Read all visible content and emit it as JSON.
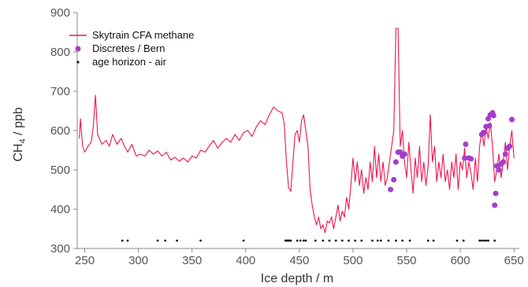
{
  "chart_data": {
    "type": "line",
    "xlabel": "Ice depth  / m",
    "ylabel_main": "CH",
    "ylabel_sub": "4",
    "ylabel_unit": " / ppb",
    "xlim": [
      243,
      655
    ],
    "ylim": [
      300,
      900
    ],
    "x_ticks": [
      {
        "value": 250,
        "label": "250"
      },
      {
        "value": 300,
        "label": "300"
      },
      {
        "value": 350,
        "label": "350"
      },
      {
        "value": 400,
        "label": "400"
      },
      {
        "value": 450,
        "label": "450"
      },
      {
        "value": 500,
        "label": "500"
      },
      {
        "value": 550,
        "label": "550"
      },
      {
        "value": 600,
        "label": "600"
      },
      {
        "value": 650,
        "label": "650"
      }
    ],
    "y_ticks": [
      {
        "value": 300,
        "label": "300"
      },
      {
        "value": 400,
        "label": "400"
      },
      {
        "value": 500,
        "label": "500"
      },
      {
        "value": 600,
        "label": "600"
      },
      {
        "value": 700,
        "label": "700"
      },
      {
        "value": 800,
        "label": "800"
      },
      {
        "value": 900,
        "label": "900"
      }
    ],
    "grid": false,
    "legend_position": "top-left",
    "colors": {
      "cfa": "#f0134f",
      "discrete": "#a43ec8",
      "age": "#111111",
      "axis": "#888888"
    },
    "series": [
      {
        "name": "Skytrain CFA methane",
        "kind": "line",
        "points": [
          [
            245,
            580
          ],
          [
            246,
            630
          ],
          [
            248,
            560
          ],
          [
            250,
            545
          ],
          [
            253,
            560
          ],
          [
            256,
            570
          ],
          [
            258,
            610
          ],
          [
            260,
            690
          ],
          [
            262,
            590
          ],
          [
            266,
            565
          ],
          [
            270,
            575
          ],
          [
            273,
            560
          ],
          [
            276,
            590
          ],
          [
            280,
            565
          ],
          [
            284,
            580
          ],
          [
            287,
            560
          ],
          [
            290,
            545
          ],
          [
            294,
            565
          ],
          [
            298,
            535
          ],
          [
            302,
            540
          ],
          [
            306,
            535
          ],
          [
            310,
            550
          ],
          [
            314,
            540
          ],
          [
            318,
            548
          ],
          [
            322,
            535
          ],
          [
            326,
            545
          ],
          [
            330,
            525
          ],
          [
            334,
            532
          ],
          [
            338,
            522
          ],
          [
            342,
            530
          ],
          [
            346,
            520
          ],
          [
            350,
            535
          ],
          [
            354,
            530
          ],
          [
            358,
            550
          ],
          [
            362,
            545
          ],
          [
            366,
            560
          ],
          [
            370,
            575
          ],
          [
            374,
            555
          ],
          [
            378,
            570
          ],
          [
            382,
            580
          ],
          [
            386,
            570
          ],
          [
            390,
            590
          ],
          [
            394,
            575
          ],
          [
            398,
            595
          ],
          [
            402,
            600
          ],
          [
            406,
            585
          ],
          [
            410,
            610
          ],
          [
            414,
            625
          ],
          [
            418,
            615
          ],
          [
            422,
            640
          ],
          [
            426,
            660
          ],
          [
            430,
            650
          ],
          [
            434,
            645
          ],
          [
            436,
            615
          ],
          [
            438,
            520
          ],
          [
            440,
            455
          ],
          [
            442,
            445
          ],
          [
            444,
            520
          ],
          [
            446,
            590
          ],
          [
            448,
            600
          ],
          [
            450,
            570
          ],
          [
            452,
            625
          ],
          [
            454,
            640
          ],
          [
            456,
            600
          ],
          [
            458,
            560
          ],
          [
            460,
            450
          ],
          [
            462,
            410
          ],
          [
            464,
            380
          ],
          [
            466,
            360
          ],
          [
            468,
            380
          ],
          [
            470,
            350
          ],
          [
            472,
            360
          ],
          [
            474,
            340
          ],
          [
            476,
            370
          ],
          [
            478,
            365
          ],
          [
            480,
            380
          ],
          [
            482,
            350
          ],
          [
            484,
            380
          ],
          [
            486,
            410
          ],
          [
            488,
            370
          ],
          [
            490,
            395
          ],
          [
            492,
            380
          ],
          [
            494,
            430
          ],
          [
            496,
            400
          ],
          [
            498,
            460
          ],
          [
            500,
            530
          ],
          [
            502,
            470
          ],
          [
            504,
            520
          ],
          [
            506,
            460
          ],
          [
            508,
            500
          ],
          [
            510,
            440
          ],
          [
            512,
            480
          ],
          [
            514,
            450
          ],
          [
            516,
            520
          ],
          [
            518,
            470
          ],
          [
            520,
            560
          ],
          [
            522,
            480
          ],
          [
            524,
            540
          ],
          [
            526,
            470
          ],
          [
            528,
            520
          ],
          [
            530,
            460
          ],
          [
            532,
            480
          ],
          [
            534,
            520
          ],
          [
            536,
            560
          ],
          [
            538,
            600
          ],
          [
            540,
            860
          ],
          [
            542,
            860
          ],
          [
            544,
            560
          ],
          [
            546,
            600
          ],
          [
            548,
            520
          ],
          [
            550,
            480
          ],
          [
            552,
            570
          ],
          [
            554,
            500
          ],
          [
            556,
            440
          ],
          [
            558,
            530
          ],
          [
            560,
            480
          ],
          [
            562,
            560
          ],
          [
            564,
            470
          ],
          [
            566,
            520
          ],
          [
            568,
            460
          ],
          [
            570,
            510
          ],
          [
            572,
            640
          ],
          [
            574,
            520
          ],
          [
            576,
            560
          ],
          [
            578,
            470
          ],
          [
            580,
            520
          ],
          [
            582,
            480
          ],
          [
            584,
            540
          ],
          [
            586,
            470
          ],
          [
            588,
            500
          ],
          [
            590,
            450
          ],
          [
            592,
            520
          ],
          [
            594,
            480
          ],
          [
            596,
            540
          ],
          [
            598,
            450
          ],
          [
            600,
            520
          ],
          [
            602,
            500
          ],
          [
            604,
            555
          ],
          [
            606,
            480
          ],
          [
            608,
            520
          ],
          [
            610,
            490
          ],
          [
            612,
            450
          ],
          [
            614,
            530
          ],
          [
            616,
            470
          ],
          [
            618,
            560
          ],
          [
            620,
            600
          ],
          [
            622,
            560
          ],
          [
            624,
            610
          ],
          [
            626,
            580
          ],
          [
            628,
            620
          ],
          [
            630,
            560
          ],
          [
            632,
            470
          ],
          [
            634,
            500
          ],
          [
            636,
            540
          ],
          [
            638,
            480
          ],
          [
            640,
            520
          ],
          [
            642,
            570
          ],
          [
            644,
            500
          ],
          [
            646,
            560
          ],
          [
            648,
            600
          ],
          [
            650,
            530
          ]
        ]
      },
      {
        "name": "Discretes / Bern",
        "kind": "scatter",
        "points": [
          [
            535,
            450
          ],
          [
            538,
            475
          ],
          [
            540,
            520
          ],
          [
            542,
            545
          ],
          [
            544,
            545
          ],
          [
            546,
            535
          ],
          [
            548,
            540
          ],
          [
            604,
            530
          ],
          [
            605,
            565
          ],
          [
            608,
            530
          ],
          [
            610,
            528
          ],
          [
            620,
            590
          ],
          [
            622,
            595
          ],
          [
            624,
            610
          ],
          [
            626,
            630
          ],
          [
            627,
            612
          ],
          [
            628,
            640
          ],
          [
            630,
            645
          ],
          [
            631,
            638
          ],
          [
            632,
            410
          ],
          [
            633,
            440
          ],
          [
            634,
            510
          ],
          [
            636,
            500
          ],
          [
            638,
            515
          ],
          [
            640,
            520
          ],
          [
            642,
            540
          ],
          [
            644,
            555
          ],
          [
            646,
            560
          ],
          [
            648,
            628
          ]
        ]
      },
      {
        "name": "age horizon - air",
        "kind": "scatter",
        "y": 320,
        "x": [
          285,
          290,
          318,
          325,
          336,
          358,
          398,
          437,
          438,
          439,
          440,
          441,
          442,
          448,
          451,
          454,
          456,
          465,
          472,
          478,
          484,
          490,
          496,
          502,
          508,
          518,
          523,
          526,
          533,
          540,
          546,
          553,
          570,
          575,
          597,
          603,
          618,
          620,
          622,
          624,
          626,
          632
        ]
      }
    ]
  }
}
